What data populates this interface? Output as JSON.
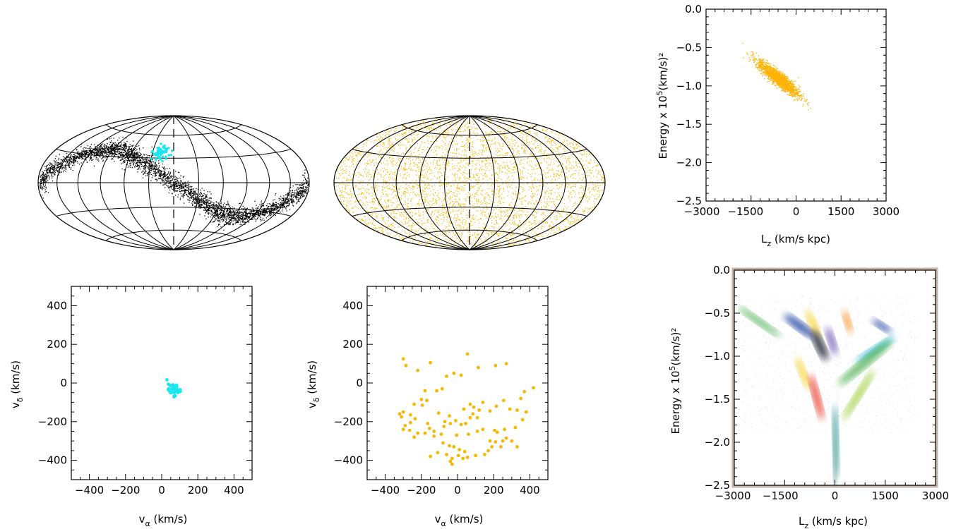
{
  "chart_data": [
    {
      "id": "sky_left",
      "type": "scatter",
      "projection": "hammer-aitoff",
      "meridian_dashed": true,
      "colors": {
        "stream": "#000000",
        "highlight": "#19e6f0"
      },
      "series": [
        {
          "role": "stream",
          "color": "#000000"
        },
        {
          "role": "highlight",
          "color": "#19e6f0"
        }
      ]
    },
    {
      "id": "sky_middle",
      "type": "scatter",
      "projection": "hammer-aitoff",
      "meridian_dashed": true,
      "colors": {
        "points": "#f6b800"
      },
      "series": [
        {
          "role": "uniform",
          "color": "#f6b800"
        }
      ]
    },
    {
      "id": "energy_top",
      "type": "scatter",
      "xlabel": "L",
      "xlabel_sub": "z",
      "xlabel_rest": " (km/s kpc)",
      "ylabel": "Energy x 10",
      "ylabel_sup": "5",
      "ylabel_rest": "(km/s)²",
      "xlim": [
        -3000,
        3000
      ],
      "ylim": [
        -2.5,
        0.0
      ],
      "xticks": [
        "−3000",
        "−1500",
        "0",
        "1500",
        "3000"
      ],
      "yticks": [
        "−2.5",
        "−2.0",
        "−1.5",
        "−1.0",
        "−0.5",
        "0.0"
      ],
      "cluster": {
        "center": [
          -600,
          -0.9
        ],
        "slope": -0.0003,
        "x_spread": 350,
        "y_spread": 0.05
      },
      "colors": {
        "points": "#ffb200"
      }
    },
    {
      "id": "vel_left",
      "type": "scatter",
      "xlabel": "v",
      "xlabel_sub": "α",
      "xlabel_rest": " (km/s)",
      "ylabel": "v",
      "ylabel_sub": "δ",
      "ylabel_rest": " (km/s)",
      "xlim": [
        -500,
        500
      ],
      "ylim": [
        -500,
        500
      ],
      "xticks": [
        "−400",
        "−200",
        "0",
        "200",
        "400"
      ],
      "yticks": [
        "−400",
        "−200",
        "0",
        "200",
        "400"
      ],
      "cluster": {
        "center": [
          65,
          -35
        ],
        "spread": 18,
        "n": 40
      },
      "colors": {
        "points": "#19e6f0"
      }
    },
    {
      "id": "vel_middle",
      "type": "scatter",
      "xlabel": "v",
      "xlabel_sub": "α",
      "xlabel_rest": " (km/s)",
      "ylabel": "v",
      "ylabel_sub": "δ",
      "ylabel_rest": " (km/s)",
      "xlim": [
        -500,
        500
      ],
      "ylim": [
        -500,
        500
      ],
      "xticks": [
        "−400",
        "−200",
        "0",
        "200",
        "400"
      ],
      "yticks": [
        "−400",
        "−200",
        "0",
        "200",
        "400"
      ],
      "colors": {
        "points": "#f6b800"
      },
      "points": [
        [
          -300,
          125
        ],
        [
          -285,
          90
        ],
        [
          -220,
          65
        ],
        [
          -150,
          105
        ],
        [
          55,
          150
        ],
        [
          270,
          100
        ],
        [
          210,
          90
        ],
        [
          115,
          80
        ],
        [
          -20,
          50
        ],
        [
          20,
          40
        ],
        [
          -60,
          35
        ],
        [
          -85,
          -30
        ],
        [
          -115,
          -40
        ],
        [
          -180,
          -40
        ],
        [
          -200,
          -85
        ],
        [
          -170,
          -90
        ],
        [
          -240,
          -110
        ],
        [
          -195,
          -115
        ],
        [
          -300,
          -150
        ],
        [
          -320,
          -160
        ],
        [
          -310,
          -175
        ],
        [
          -260,
          -165
        ],
        [
          -235,
          -185
        ],
        [
          -260,
          -205
        ],
        [
          -290,
          -220
        ],
        [
          -300,
          -240
        ],
        [
          -265,
          -245
        ],
        [
          -220,
          -260
        ],
        [
          -180,
          -260
        ],
        [
          -240,
          -280
        ],
        [
          -165,
          -210
        ],
        [
          -155,
          -235
        ],
        [
          -105,
          -155
        ],
        [
          -130,
          -250
        ],
        [
          -75,
          -225
        ],
        [
          -40,
          -210
        ],
        [
          -10,
          -195
        ],
        [
          20,
          -215
        ],
        [
          45,
          -210
        ],
        [
          35,
          -135
        ],
        [
          70,
          -110
        ],
        [
          90,
          -125
        ],
        [
          140,
          -100
        ],
        [
          120,
          -140
        ],
        [
          85,
          -160
        ],
        [
          70,
          -180
        ],
        [
          110,
          -180
        ],
        [
          180,
          -145
        ],
        [
          215,
          -120
        ],
        [
          255,
          -90
        ],
        [
          290,
          -135
        ],
        [
          330,
          -140
        ],
        [
          350,
          -80
        ],
        [
          370,
          -45
        ],
        [
          420,
          -25
        ],
        [
          380,
          -150
        ],
        [
          360,
          -190
        ],
        [
          320,
          -230
        ],
        [
          260,
          -240
        ],
        [
          220,
          -255
        ],
        [
          205,
          -245
        ],
        [
          180,
          -300
        ],
        [
          210,
          -305
        ],
        [
          250,
          -300
        ],
        [
          270,
          -285
        ],
        [
          240,
          -330
        ],
        [
          300,
          -300
        ],
        [
          330,
          -330
        ],
        [
          190,
          -330
        ],
        [
          150,
          -370
        ],
        [
          170,
          -350
        ],
        [
          100,
          -375
        ],
        [
          55,
          -385
        ],
        [
          40,
          -355
        ],
        [
          10,
          -345
        ],
        [
          -20,
          -330
        ],
        [
          -45,
          -325
        ],
        [
          -80,
          -310
        ],
        [
          -110,
          -360
        ],
        [
          -150,
          -380
        ],
        [
          -60,
          -370
        ],
        [
          -30,
          -390
        ],
        [
          -40,
          -405
        ],
        [
          -30,
          -420
        ],
        [
          5,
          -375
        ],
        [
          30,
          -390
        ],
        [
          -90,
          -265
        ],
        [
          -130,
          -275
        ],
        [
          -45,
          -170
        ],
        [
          -5,
          -270
        ],
        [
          60,
          -265
        ],
        [
          110,
          -250
        ],
        [
          140,
          -240
        ],
        [
          -70,
          -200
        ]
      ]
    },
    {
      "id": "energy_bottom",
      "type": "scatter",
      "xlabel": "L",
      "xlabel_sub": "z",
      "xlabel_rest": " (km/s kpc)",
      "ylabel": "Energy x 10",
      "ylabel_sup": "5",
      "ylabel_rest": "(km/s)²",
      "xlim": [
        -3000,
        3000
      ],
      "ylim": [
        -2.5,
        0.0
      ],
      "xticks": [
        "−3000",
        "−1500",
        "0",
        "1500",
        "3000"
      ],
      "yticks": [
        "−2.5",
        "−2.0",
        "−1.5",
        "−1.0",
        "−0.5",
        "0.0"
      ],
      "colors": {
        "green": "#4caf50",
        "blue": "#1f3fa0",
        "yellow": "#f5d22a",
        "orange": "#f58a1f",
        "red": "#e62b1e",
        "cyan": "#2fb8d8",
        "lime": "#9acd32",
        "teal": "#1a8c8c",
        "black": "#111122",
        "purple": "#6a4fb0"
      },
      "clumps": [
        {
          "color": "#4caf50",
          "from": [
            -2800,
            -0.45
          ],
          "to": [
            -1700,
            -0.75
          ],
          "width": 0.07
        },
        {
          "color": "#1f3fa0",
          "from": [
            -1400,
            -0.55
          ],
          "to": [
            -700,
            -0.75
          ],
          "width": 0.1
        },
        {
          "color": "#f5d22a",
          "from": [
            -800,
            -0.5
          ],
          "to": [
            -500,
            -0.75
          ],
          "width": 0.08
        },
        {
          "color": "#f58a1f",
          "from": [
            300,
            -0.5
          ],
          "to": [
            450,
            -0.7
          ],
          "width": 0.07
        },
        {
          "color": "#1f3fa0",
          "from": [
            1200,
            -0.6
          ],
          "to": [
            1600,
            -0.7
          ],
          "width": 0.07
        },
        {
          "color": "#111122",
          "from": [
            -600,
            -0.75
          ],
          "to": [
            -300,
            -1.0
          ],
          "width": 0.1
        },
        {
          "color": "#2fb8d8",
          "from": [
            1700,
            -0.8
          ],
          "to": [
            700,
            -1.05
          ],
          "width": 0.08
        },
        {
          "color": "#4caf50",
          "from": [
            1600,
            -0.85
          ],
          "to": [
            200,
            -1.3
          ],
          "width": 0.1
        },
        {
          "color": "#f5d22a",
          "from": [
            -1100,
            -1.05
          ],
          "to": [
            -800,
            -1.35
          ],
          "width": 0.08
        },
        {
          "color": "#e62b1e",
          "from": [
            -700,
            -1.25
          ],
          "to": [
            -400,
            -1.7
          ],
          "width": 0.08
        },
        {
          "color": "#9acd32",
          "from": [
            1100,
            -1.2
          ],
          "to": [
            300,
            -1.7
          ],
          "width": 0.08
        },
        {
          "color": "#1a8c8c",
          "from": [
            0,
            -1.6
          ],
          "to": [
            50,
            -2.4
          ],
          "width": 0.06
        },
        {
          "color": "#6a4fb0",
          "from": [
            -200,
            -0.7
          ],
          "to": [
            0,
            -0.95
          ],
          "width": 0.08
        }
      ]
    }
  ]
}
